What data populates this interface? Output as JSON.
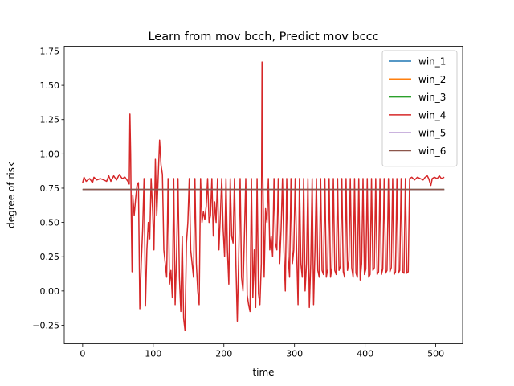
{
  "chart_data": {
    "type": "line",
    "title": "Learn from mov bcch, Predict mov bccc",
    "xlabel": "time",
    "ylabel": "degree of risk",
    "xlim": [
      -26,
      538
    ],
    "ylim": [
      -0.385,
      1.785
    ],
    "xticks": [
      0,
      100,
      200,
      300,
      400,
      500
    ],
    "xtick_labels": [
      "0",
      "100",
      "200",
      "300",
      "400",
      "500"
    ],
    "yticks": [
      -0.25,
      0.0,
      0.25,
      0.5,
      0.75,
      1.0,
      1.25,
      1.5,
      1.75
    ],
    "ytick_labels": [
      "−0.25",
      "0.00",
      "0.25",
      "0.50",
      "0.75",
      "1.00",
      "1.25",
      "1.50",
      "1.75"
    ],
    "grid": false,
    "legend_position": "top-right",
    "series": [
      {
        "name": "win_1",
        "color": "#1f77b4",
        "points": [
          [
            0,
            0.74
          ],
          [
            512,
            0.74
          ]
        ]
      },
      {
        "name": "win_2",
        "color": "#ff7f0e",
        "points": [
          [
            0,
            0.74
          ],
          [
            512,
            0.74
          ]
        ]
      },
      {
        "name": "win_3",
        "color": "#2ca02c",
        "points": [
          [
            0,
            0.74
          ],
          [
            512,
            0.74
          ]
        ]
      },
      {
        "name": "win_4",
        "color": "#d62728",
        "points": [
          [
            0,
            0.79
          ],
          [
            2,
            0.83
          ],
          [
            5,
            0.8
          ],
          [
            10,
            0.82
          ],
          [
            14,
            0.79
          ],
          [
            16,
            0.83
          ],
          [
            20,
            0.81
          ],
          [
            25,
            0.82
          ],
          [
            30,
            0.81
          ],
          [
            34,
            0.8
          ],
          [
            37,
            0.84
          ],
          [
            40,
            0.8
          ],
          [
            44,
            0.84
          ],
          [
            48,
            0.81
          ],
          [
            52,
            0.85
          ],
          [
            56,
            0.82
          ],
          [
            60,
            0.83
          ],
          [
            64,
            0.8
          ],
          [
            66,
            0.78
          ],
          [
            67,
            1.29
          ],
          [
            68,
            1.0
          ],
          [
            69,
            0.5
          ],
          [
            70,
            0.14
          ],
          [
            71,
            0.7
          ],
          [
            73,
            0.55
          ],
          [
            75,
            0.67
          ],
          [
            77,
            0.77
          ],
          [
            79,
            0.79
          ],
          [
            81,
            -0.13
          ],
          [
            83,
            0.2
          ],
          [
            85,
            0.45
          ],
          [
            87,
            0.82
          ],
          [
            89,
            -0.11
          ],
          [
            91,
            0.3
          ],
          [
            93,
            0.5
          ],
          [
            95,
            0.38
          ],
          [
            97,
            0.82
          ],
          [
            99,
            0.6
          ],
          [
            101,
            0.3
          ],
          [
            103,
            0.96
          ],
          [
            105,
            0.55
          ],
          [
            107,
            0.83
          ],
          [
            109,
            1.1
          ],
          [
            111,
            0.92
          ],
          [
            113,
            0.85
          ],
          [
            115,
            0.3
          ],
          [
            117,
            0.2
          ],
          [
            119,
            0.1
          ],
          [
            121,
            0.82
          ],
          [
            123,
            0.05
          ],
          [
            125,
            0.15
          ],
          [
            127,
            -0.05
          ],
          [
            129,
            0.82
          ],
          [
            131,
            -0.1
          ],
          [
            133,
            0.25
          ],
          [
            135,
            0.82
          ],
          [
            137,
            0.1
          ],
          [
            139,
            -0.15
          ],
          [
            141,
            0.4
          ],
          [
            143,
            -0.2
          ],
          [
            145,
            -0.29
          ],
          [
            147,
            0.35
          ],
          [
            149,
            0.5
          ],
          [
            151,
            0.82
          ],
          [
            153,
            0.3
          ],
          [
            155,
            0.2
          ],
          [
            157,
            0.1
          ],
          [
            159,
            0.82
          ],
          [
            161,
            0.2
          ],
          [
            163,
            0.0
          ],
          [
            165,
            -0.1
          ],
          [
            167,
            0.82
          ],
          [
            169,
            0.5
          ],
          [
            171,
            0.58
          ],
          [
            173,
            0.52
          ],
          [
            175,
            0.62
          ],
          [
            177,
            0.82
          ],
          [
            179,
            0.5
          ],
          [
            181,
            0.55
          ],
          [
            183,
            0.82
          ],
          [
            185,
            0.4
          ],
          [
            187,
            0.65
          ],
          [
            189,
            0.5
          ],
          [
            191,
            0.82
          ],
          [
            193,
            0.3
          ],
          [
            195,
            0.55
          ],
          [
            197,
            0.82
          ],
          [
            199,
            0.45
          ],
          [
            201,
            0.25
          ],
          [
            203,
            0.82
          ],
          [
            205,
            0.3
          ],
          [
            207,
            0.05
          ],
          [
            209,
            0.82
          ],
          [
            211,
            0.4
          ],
          [
            213,
            0.35
          ],
          [
            215,
            0.82
          ],
          [
            217,
            0.2
          ],
          [
            219,
            -0.22
          ],
          [
            221,
            0.25
          ],
          [
            223,
            0.82
          ],
          [
            225,
            0.1
          ],
          [
            227,
            0.0
          ],
          [
            229,
            0.4
          ],
          [
            231,
            0.82
          ],
          [
            233,
            -0.03
          ],
          [
            235,
            -0.1
          ],
          [
            237,
            -0.15
          ],
          [
            239,
            0.82
          ],
          [
            241,
            -0.05
          ],
          [
            243,
            0.3
          ],
          [
            245,
            -0.12
          ],
          [
            247,
            0.82
          ],
          [
            249,
            -0.02
          ],
          [
            251,
            -0.1
          ],
          [
            253,
            0.2
          ],
          [
            254,
            1.67
          ],
          [
            255,
            0.9
          ],
          [
            257,
            0.1
          ],
          [
            259,
            0.6
          ],
          [
            261,
            0.5
          ],
          [
            263,
            0.82
          ],
          [
            265,
            0.3
          ],
          [
            267,
            0.4
          ],
          [
            269,
            0.25
          ],
          [
            271,
            0.82
          ],
          [
            273,
            0.35
          ],
          [
            275,
            0.3
          ],
          [
            277,
            0.82
          ],
          [
            279,
            0.2
          ],
          [
            281,
            0.45
          ],
          [
            283,
            0.82
          ],
          [
            285,
            0.3
          ],
          [
            287,
            0.0
          ],
          [
            289,
            0.82
          ],
          [
            291,
            0.25
          ],
          [
            293,
            0.1
          ],
          [
            295,
            0.82
          ],
          [
            297,
            0.2
          ],
          [
            299,
            0.3
          ],
          [
            301,
            0.82
          ],
          [
            303,
            0.3
          ],
          [
            305,
            -0.1
          ],
          [
            307,
            0.82
          ],
          [
            309,
            0.2
          ],
          [
            311,
            0.1
          ],
          [
            313,
            0.82
          ],
          [
            315,
            0.0
          ],
          [
            317,
            0.2
          ],
          [
            319,
            0.82
          ],
          [
            321,
            -0.12
          ],
          [
            323,
            0.2
          ],
          [
            325,
            0.82
          ],
          [
            327,
            -0.1
          ],
          [
            329,
            0.3
          ],
          [
            331,
            0.82
          ],
          [
            333,
            0.15
          ],
          [
            335,
            0.1
          ],
          [
            337,
            0.82
          ],
          [
            339,
            0.15
          ],
          [
            341,
            0.12
          ],
          [
            343,
            0.82
          ],
          [
            345,
            0.1
          ],
          [
            347,
            0.16
          ],
          [
            349,
            0.82
          ],
          [
            351,
            0.1
          ],
          [
            353,
            0.17
          ],
          [
            355,
            0.82
          ],
          [
            357,
            0.15
          ],
          [
            359,
            0.12
          ],
          [
            361,
            0.82
          ],
          [
            363,
            0.15
          ],
          [
            365,
            0.18
          ],
          [
            367,
            0.82
          ],
          [
            369,
            0.14
          ],
          [
            371,
            0.1
          ],
          [
            373,
            0.82
          ],
          [
            375,
            0.15
          ],
          [
            377,
            0.22
          ],
          [
            379,
            0.82
          ],
          [
            381,
            0.17
          ],
          [
            383,
            0.1
          ],
          [
            385,
            0.82
          ],
          [
            387,
            0.13
          ],
          [
            389,
            0.1
          ],
          [
            391,
            0.82
          ],
          [
            393,
            0.08
          ],
          [
            395,
            0.2
          ],
          [
            397,
            0.82
          ],
          [
            399,
            0.12
          ],
          [
            401,
            0.16
          ],
          [
            403,
            0.82
          ],
          [
            405,
            0.1
          ],
          [
            407,
            0.12
          ],
          [
            409,
            0.82
          ],
          [
            411,
            0.15
          ],
          [
            413,
            0.17
          ],
          [
            415,
            0.82
          ],
          [
            417,
            0.12
          ],
          [
            419,
            0.14
          ],
          [
            421,
            0.82
          ],
          [
            423,
            0.12
          ],
          [
            425,
            0.16
          ],
          [
            427,
            0.82
          ],
          [
            429,
            0.13
          ],
          [
            431,
            0.15
          ],
          [
            433,
            0.82
          ],
          [
            435,
            0.14
          ],
          [
            437,
            0.17
          ],
          [
            439,
            0.82
          ],
          [
            441,
            0.12
          ],
          [
            443,
            0.14
          ],
          [
            445,
            0.82
          ],
          [
            447,
            0.13
          ],
          [
            449,
            0.15
          ],
          [
            451,
            0.82
          ],
          [
            453,
            0.14
          ],
          [
            455,
            0.13
          ],
          [
            457,
            0.82
          ],
          [
            459,
            0.13
          ],
          [
            461,
            0.14
          ],
          [
            463,
            0.82
          ],
          [
            466,
            0.83
          ],
          [
            470,
            0.81
          ],
          [
            474,
            0.83
          ],
          [
            478,
            0.82
          ],
          [
            482,
            0.81
          ],
          [
            485,
            0.83
          ],
          [
            488,
            0.84
          ],
          [
            490,
            0.82
          ],
          [
            493,
            0.77
          ],
          [
            495,
            0.82
          ],
          [
            498,
            0.83
          ],
          [
            502,
            0.82
          ],
          [
            505,
            0.84
          ],
          [
            508,
            0.82
          ],
          [
            512,
            0.83
          ]
        ]
      },
      {
        "name": "win_5",
        "color": "#9467bd",
        "points": [
          [
            0,
            0.74
          ],
          [
            512,
            0.74
          ]
        ]
      },
      {
        "name": "win_6",
        "color": "#8c564b",
        "points": [
          [
            0,
            0.74
          ],
          [
            512,
            0.74
          ]
        ]
      }
    ]
  }
}
